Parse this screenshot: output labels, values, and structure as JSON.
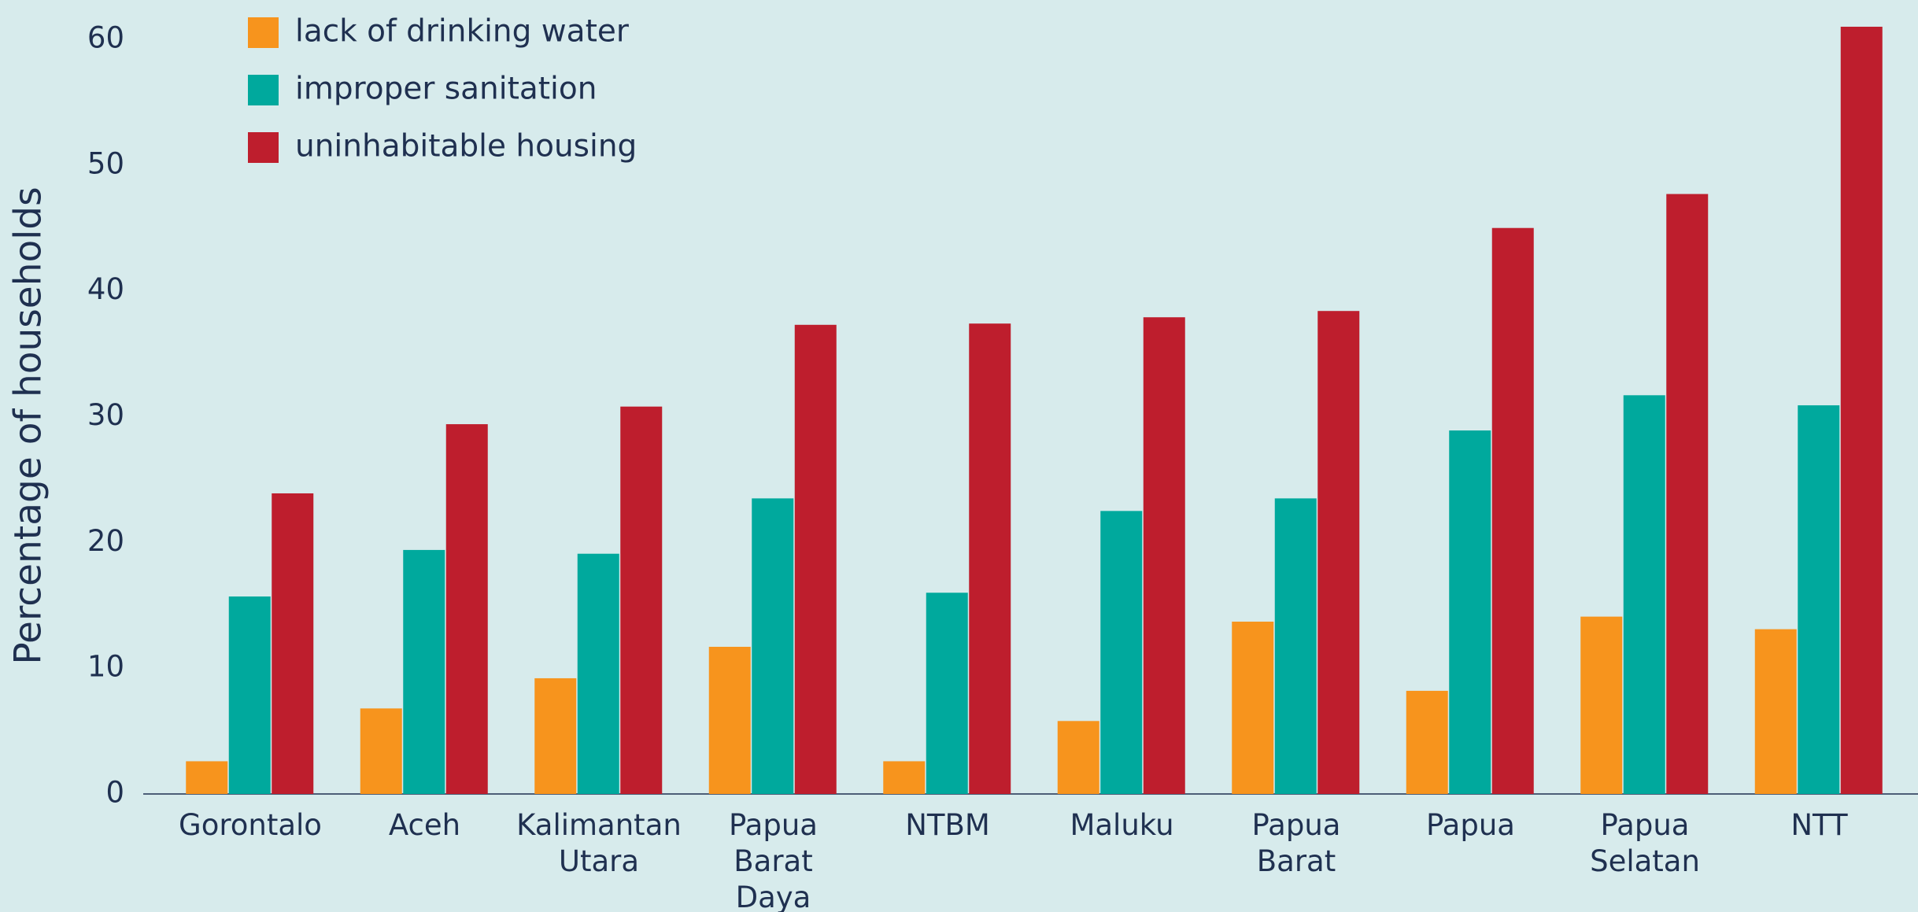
{
  "chart_data": {
    "type": "bar",
    "ylabel": "Percentage of households",
    "categories": [
      "Gorontalo",
      "Aceh",
      "Kalimantan\nUtara",
      "Papua\nBarat\nDaya",
      "NTBM",
      "Maluku",
      "Papua\nBarat",
      "Papua",
      "Papua\nSelatan",
      "NTT"
    ],
    "series": [
      {
        "name": "lack of drinking water",
        "color": "#f7941d",
        "values": [
          2.6,
          6.8,
          9.2,
          11.7,
          2.6,
          5.8,
          13.7,
          8.2,
          14.1,
          13.1
        ]
      },
      {
        "name": "improper sanitation",
        "color": "#00a99d",
        "values": [
          15.7,
          19.4,
          19.1,
          23.5,
          16.0,
          22.5,
          23.5,
          28.9,
          31.7,
          30.9
        ]
      },
      {
        "name": "uninhabitable housing",
        "color": "#be1e2d",
        "values": [
          23.9,
          29.4,
          30.8,
          37.3,
          37.4,
          37.9,
          38.4,
          45.0,
          47.7,
          61.0
        ]
      }
    ],
    "ylim": [
      0,
      63
    ],
    "yticks": [
      0,
      10,
      20,
      30,
      40,
      50,
      60
    ],
    "grid": false,
    "legend": "top-left"
  }
}
